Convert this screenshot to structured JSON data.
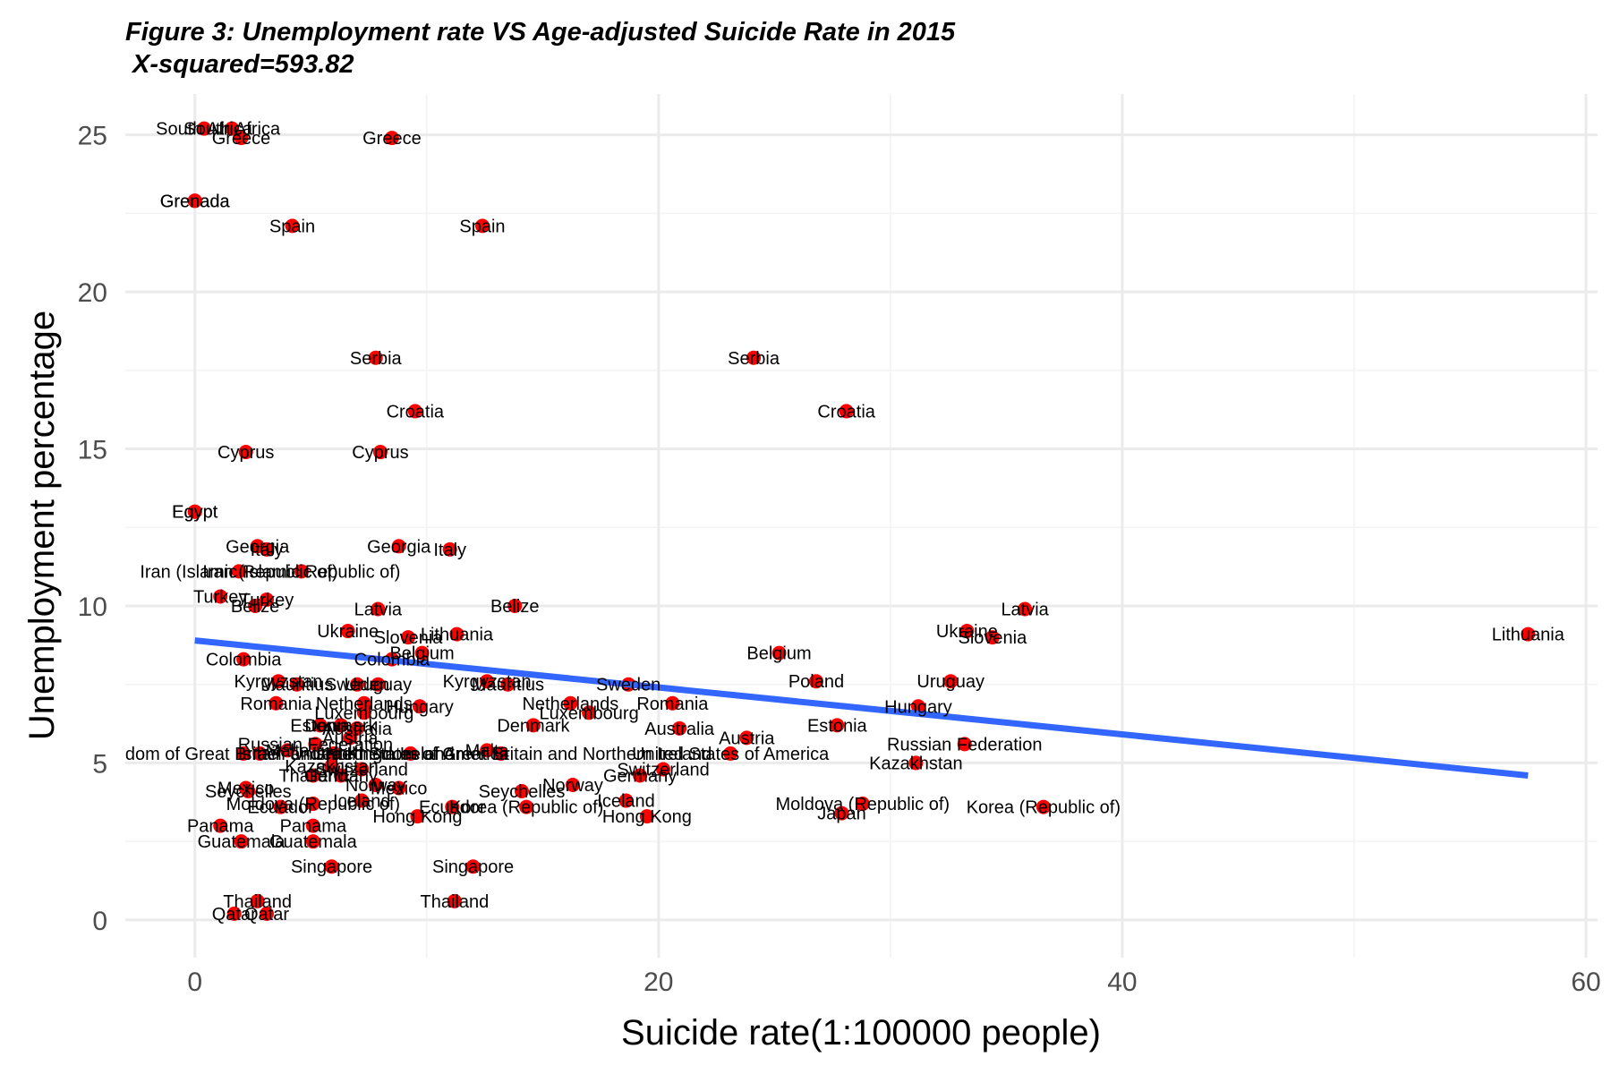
{
  "title": "Figure 3: Unemployment rate VS Age-adjusted Suicide Rate in 2015",
  "subtitle": " X-squared=593.82",
  "chart_data": {
    "type": "scatter",
    "title": "Figure 3: Unemployment rate VS Age-adjusted Suicide Rate in 2015",
    "subtitle": " X-squared=593.82",
    "xlabel": "Suicide rate(1:100000 people)",
    "ylabel": "Unemployment percentage",
    "xlim": [
      -3,
      60.5
    ],
    "ylim": [
      -1.2,
      26.3
    ],
    "x_ticks": [
      0,
      20,
      40,
      60
    ],
    "y_ticks": [
      0,
      5,
      10,
      15,
      20,
      25
    ],
    "grid": true,
    "legend": "none",
    "point_color": "#ff0000",
    "trend_color": "#3366ff",
    "trend_line": {
      "type": "linear",
      "x": [
        0,
        57.5
      ],
      "y": [
        8.9,
        4.6
      ]
    },
    "points": [
      {
        "x": 0.4,
        "y": 25.2,
        "label": "South Africa"
      },
      {
        "x": 1.6,
        "y": 25.2,
        "label": "South Africa"
      },
      {
        "x": 2.0,
        "y": 24.9,
        "label": "Greece"
      },
      {
        "x": 8.5,
        "y": 24.9,
        "label": "Greece"
      },
      {
        "x": 0.0,
        "y": 22.9,
        "label": "Grenada"
      },
      {
        "x": 0.0,
        "y": 22.9,
        "label": "Grenada"
      },
      {
        "x": 4.2,
        "y": 22.1,
        "label": "Spain"
      },
      {
        "x": 12.4,
        "y": 22.1,
        "label": "Spain"
      },
      {
        "x": 7.8,
        "y": 17.9,
        "label": "Serbia"
      },
      {
        "x": 24.1,
        "y": 17.9,
        "label": "Serbia"
      },
      {
        "x": 9.5,
        "y": 16.2,
        "label": "Croatia"
      },
      {
        "x": 28.1,
        "y": 16.2,
        "label": "Croatia"
      },
      {
        "x": 2.2,
        "y": 14.9,
        "label": "Cyprus"
      },
      {
        "x": 8.0,
        "y": 14.9,
        "label": "Cyprus"
      },
      {
        "x": 0.0,
        "y": 13.0,
        "label": "Egypt"
      },
      {
        "x": 0.0,
        "y": 13.0,
        "label": "Egypt"
      },
      {
        "x": 2.7,
        "y": 11.9,
        "label": "Georgia"
      },
      {
        "x": 8.8,
        "y": 11.9,
        "label": "Georgia"
      },
      {
        "x": 3.1,
        "y": 11.8,
        "label": "Italy"
      },
      {
        "x": 11.0,
        "y": 11.8,
        "label": "Italy"
      },
      {
        "x": 1.9,
        "y": 11.1,
        "label": "Iran (Islamic Republic of)"
      },
      {
        "x": 4.6,
        "y": 11.1,
        "label": "Iran (Islamic Republic of)"
      },
      {
        "x": 1.1,
        "y": 10.3,
        "label": "Turkey"
      },
      {
        "x": 3.1,
        "y": 10.2,
        "label": "Turkey"
      },
      {
        "x": 2.6,
        "y": 10.0,
        "label": "Belize"
      },
      {
        "x": 13.8,
        "y": 10.0,
        "label": "Belize"
      },
      {
        "x": 7.9,
        "y": 9.9,
        "label": "Latvia"
      },
      {
        "x": 35.8,
        "y": 9.9,
        "label": "Latvia"
      },
      {
        "x": 6.6,
        "y": 9.2,
        "label": "Ukraine"
      },
      {
        "x": 33.3,
        "y": 9.2,
        "label": "Ukraine"
      },
      {
        "x": 11.3,
        "y": 9.1,
        "label": "Lithuania"
      },
      {
        "x": 57.5,
        "y": 9.1,
        "label": "Lithuania"
      },
      {
        "x": 9.2,
        "y": 9.0,
        "label": "Slovenia"
      },
      {
        "x": 34.4,
        "y": 9.0,
        "label": "Slovenia"
      },
      {
        "x": 9.8,
        "y": 8.5,
        "label": "Belgium"
      },
      {
        "x": 25.2,
        "y": 8.5,
        "label": "Belgium"
      },
      {
        "x": 2.1,
        "y": 8.3,
        "label": "Colombia"
      },
      {
        "x": 8.5,
        "y": 8.3,
        "label": "Colombia"
      },
      {
        "x": 3.6,
        "y": 7.6,
        "label": "Kyrgyzstan"
      },
      {
        "x": 12.6,
        "y": 7.6,
        "label": "Kyrgyzstan"
      },
      {
        "x": 4.4,
        "y": 7.5,
        "label": "Mauritius"
      },
      {
        "x": 13.5,
        "y": 7.5,
        "label": "Mauritius"
      },
      {
        "x": 7.0,
        "y": 7.5,
        "label": "Sweden"
      },
      {
        "x": 18.7,
        "y": 7.5,
        "label": "Sweden"
      },
      {
        "x": 7.9,
        "y": 7.5,
        "label": "Uruguay"
      },
      {
        "x": 32.6,
        "y": 7.6,
        "label": "Uruguay"
      },
      {
        "x": 26.8,
        "y": 7.6,
        "label": "Poland"
      },
      {
        "x": 3.5,
        "y": 6.9,
        "label": "Romania"
      },
      {
        "x": 20.6,
        "y": 6.9,
        "label": "Romania"
      },
      {
        "x": 7.3,
        "y": 6.9,
        "label": "Netherlands"
      },
      {
        "x": 16.2,
        "y": 6.9,
        "label": "Netherlands"
      },
      {
        "x": 9.7,
        "y": 6.8,
        "label": "Hungary"
      },
      {
        "x": 31.2,
        "y": 6.8,
        "label": "Hungary"
      },
      {
        "x": 7.3,
        "y": 6.6,
        "label": "Luxembourg"
      },
      {
        "x": 17.0,
        "y": 6.6,
        "label": "Luxembourg"
      },
      {
        "x": 14.6,
        "y": 6.2,
        "label": "Denmark"
      },
      {
        "x": 6.3,
        "y": 6.2,
        "label": "Denmark"
      },
      {
        "x": 20.9,
        "y": 6.1,
        "label": "Australia"
      },
      {
        "x": 7.0,
        "y": 6.1,
        "label": "Australia"
      },
      {
        "x": 27.7,
        "y": 6.2,
        "label": "Estonia"
      },
      {
        "x": 5.4,
        "y": 6.2,
        "label": "Estonia"
      },
      {
        "x": 23.8,
        "y": 5.8,
        "label": "Austria"
      },
      {
        "x": 6.7,
        "y": 5.8,
        "label": "Austria"
      },
      {
        "x": 33.2,
        "y": 5.6,
        "label": "Russian Federation"
      },
      {
        "x": 5.2,
        "y": 5.6,
        "label": "Russian Federation"
      },
      {
        "x": 23.1,
        "y": 5.3,
        "label": "United States of America"
      },
      {
        "x": 9.3,
        "y": 5.3,
        "label": "United States of America"
      },
      {
        "x": 2.1,
        "y": 5.3,
        "label": "United Kingdom of Great Britain and Northern Ireland"
      },
      {
        "x": 13.2,
        "y": 5.3,
        "label": "United Kingdom of Great Britain and Northern Ireland"
      },
      {
        "x": 12.6,
        "y": 5.4,
        "label": "Malta"
      },
      {
        "x": 4.0,
        "y": 5.4,
        "label": "Malta"
      },
      {
        "x": 2.8,
        "y": 5.3,
        "label": "Israel"
      },
      {
        "x": 6.0,
        "y": 5.3,
        "label": "Israel"
      },
      {
        "x": 31.1,
        "y": 5.0,
        "label": "Kazakhstan"
      },
      {
        "x": 5.9,
        "y": 4.9,
        "label": "Kazakhstan"
      },
      {
        "x": 20.2,
        "y": 4.8,
        "label": "Switzerland"
      },
      {
        "x": 7.2,
        "y": 4.8,
        "label": "Switzerland"
      },
      {
        "x": 19.2,
        "y": 4.6,
        "label": "Germany"
      },
      {
        "x": 6.3,
        "y": 4.6,
        "label": "Germany"
      },
      {
        "x": 5.1,
        "y": 4.6,
        "label": "Thailand"
      },
      {
        "x": 16.3,
        "y": 4.3,
        "label": "Norway"
      },
      {
        "x": 7.8,
        "y": 4.3,
        "label": "Norway"
      },
      {
        "x": 8.8,
        "y": 4.2,
        "label": "Mexico"
      },
      {
        "x": 2.2,
        "y": 4.2,
        "label": "Mexico"
      },
      {
        "x": 14.1,
        "y": 4.1,
        "label": "Seychelles"
      },
      {
        "x": 2.3,
        "y": 4.1,
        "label": "Seychelles"
      },
      {
        "x": 18.6,
        "y": 3.8,
        "label": "Iceland"
      },
      {
        "x": 7.2,
        "y": 3.8,
        "label": "Iceland"
      },
      {
        "x": 28.8,
        "y": 3.7,
        "label": "Moldova (Republic of)"
      },
      {
        "x": 5.1,
        "y": 3.7,
        "label": "Moldova (Republic of)"
      },
      {
        "x": 36.6,
        "y": 3.6,
        "label": "Korea (Republic of)"
      },
      {
        "x": 14.3,
        "y": 3.6,
        "label": "Korea (Republic of)"
      },
      {
        "x": 11.1,
        "y": 3.6,
        "label": "Ecuador"
      },
      {
        "x": 3.7,
        "y": 3.6,
        "label": "Ecuador"
      },
      {
        "x": 27.9,
        "y": 3.4,
        "label": "Japan"
      },
      {
        "x": 19.5,
        "y": 3.3,
        "label": "Hong Kong"
      },
      {
        "x": 9.6,
        "y": 3.3,
        "label": "Hong Kong"
      },
      {
        "x": 1.1,
        "y": 3.0,
        "label": "Panama"
      },
      {
        "x": 5.1,
        "y": 3.0,
        "label": "Panama"
      },
      {
        "x": 2.0,
        "y": 2.5,
        "label": "Guatemala"
      },
      {
        "x": 5.1,
        "y": 2.5,
        "label": "Guatemala"
      },
      {
        "x": 5.9,
        "y": 1.7,
        "label": "Singapore"
      },
      {
        "x": 12.0,
        "y": 1.7,
        "label": "Singapore"
      },
      {
        "x": 2.7,
        "y": 0.6,
        "label": "Thailand"
      },
      {
        "x": 11.2,
        "y": 0.6,
        "label": "Thailand"
      },
      {
        "x": 1.7,
        "y": 0.2,
        "label": "Qatar"
      },
      {
        "x": 3.1,
        "y": 0.2,
        "label": "Qatar"
      }
    ]
  }
}
